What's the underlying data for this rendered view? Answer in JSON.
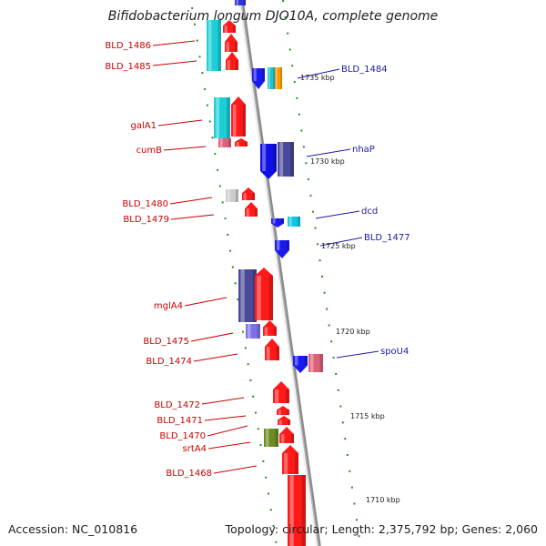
{
  "title": "Bifidobacterium longum DJO10A, complete genome",
  "footer": {
    "accession": "Accession: NC_010816",
    "summary": "Topology: circular; Length: 2,375,792 bp; Genes: 2,060"
  },
  "colors": {
    "label_left": "#cc0000",
    "label_right": "#1a1aa8",
    "axis": "#909090",
    "tick": "#2a8a2a"
  },
  "scale_labels": [
    "1735 kbp",
    "1730 kbp",
    "1725 kbp",
    "1720 kbp",
    "1715 kbp",
    "1710 kbp"
  ],
  "genes_left": [
    "BLD_1486",
    "BLD_1485",
    "galA1",
    "cumB",
    "BLD_1480",
    "BLD_1479",
    "mglA4",
    "BLD_1475",
    "BLD_1474",
    "BLD_1472",
    "BLD_1471",
    "BLD_1470",
    "srtA4",
    "BLD_1468"
  ],
  "genes_right": [
    "BLD_1484",
    "nhaP",
    "dcd",
    "BLD_1477",
    "spoU4"
  ]
}
